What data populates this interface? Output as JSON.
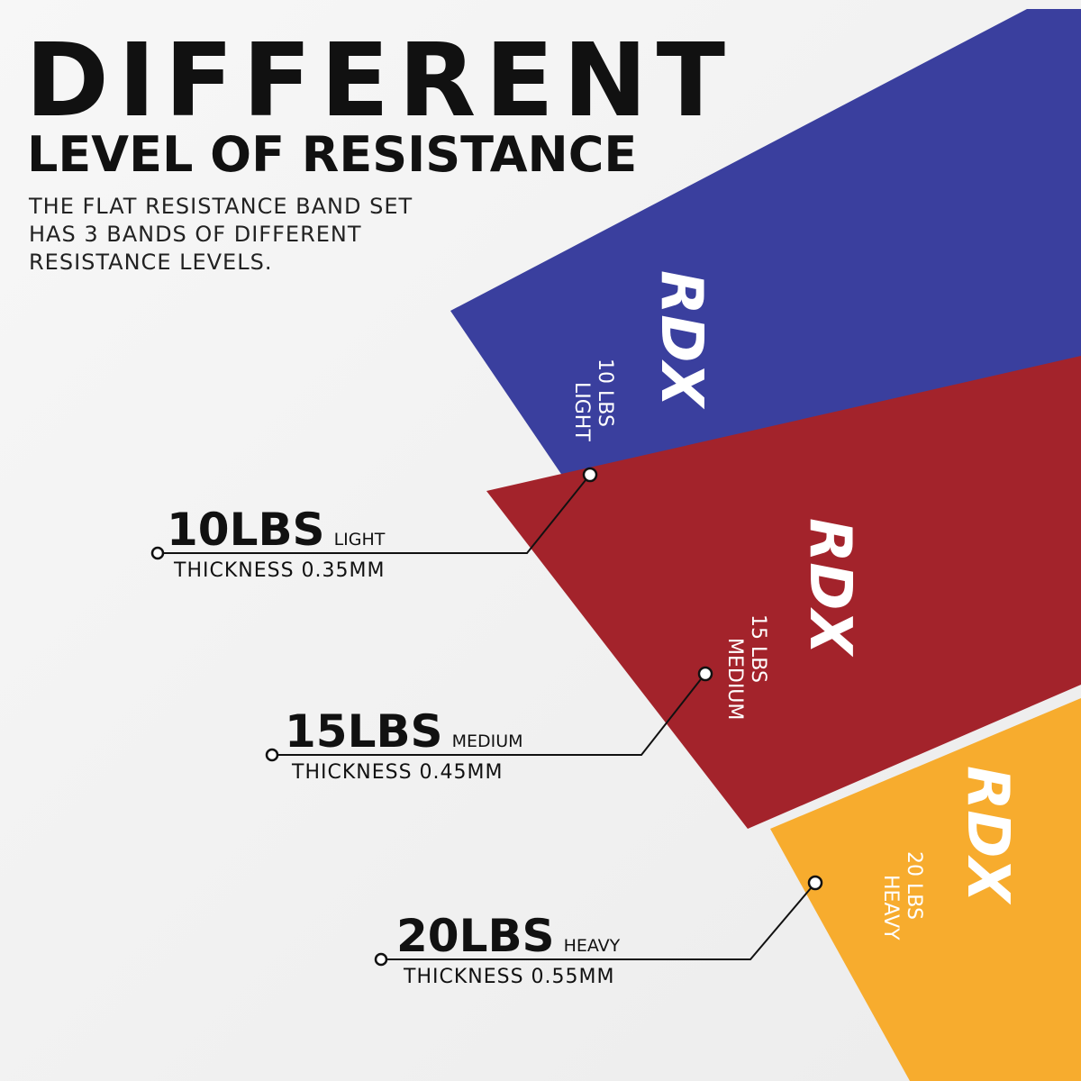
{
  "header": {
    "title": "DIFFERENT",
    "subtitle": "LEVEL OF RESISTANCE",
    "description": [
      "THE FLAT RESISTANCE BAND SET",
      "HAS 3 BANDS OF DIFFERENT",
      "RESISTANCE LEVELS."
    ]
  },
  "bands": [
    {
      "brand": "RDX",
      "weight": "10 LBS",
      "level": "LIGHT",
      "callout_weight": "10LBS",
      "callout_level": "LIGHT",
      "thickness": "THICKNESS 0.35MM"
    },
    {
      "brand": "RDX",
      "weight": "15 LBS",
      "level": "MEDIUM",
      "callout_weight": "15LBS",
      "callout_level": "MEDIUM",
      "thickness": "THICKNESS 0.45MM"
    },
    {
      "brand": "RDX",
      "weight": "20 LBS",
      "level": "HEAVY",
      "callout_weight": "20LBS",
      "callout_level": "HEAVY",
      "thickness": "THICKNESS 0.55MM"
    }
  ]
}
